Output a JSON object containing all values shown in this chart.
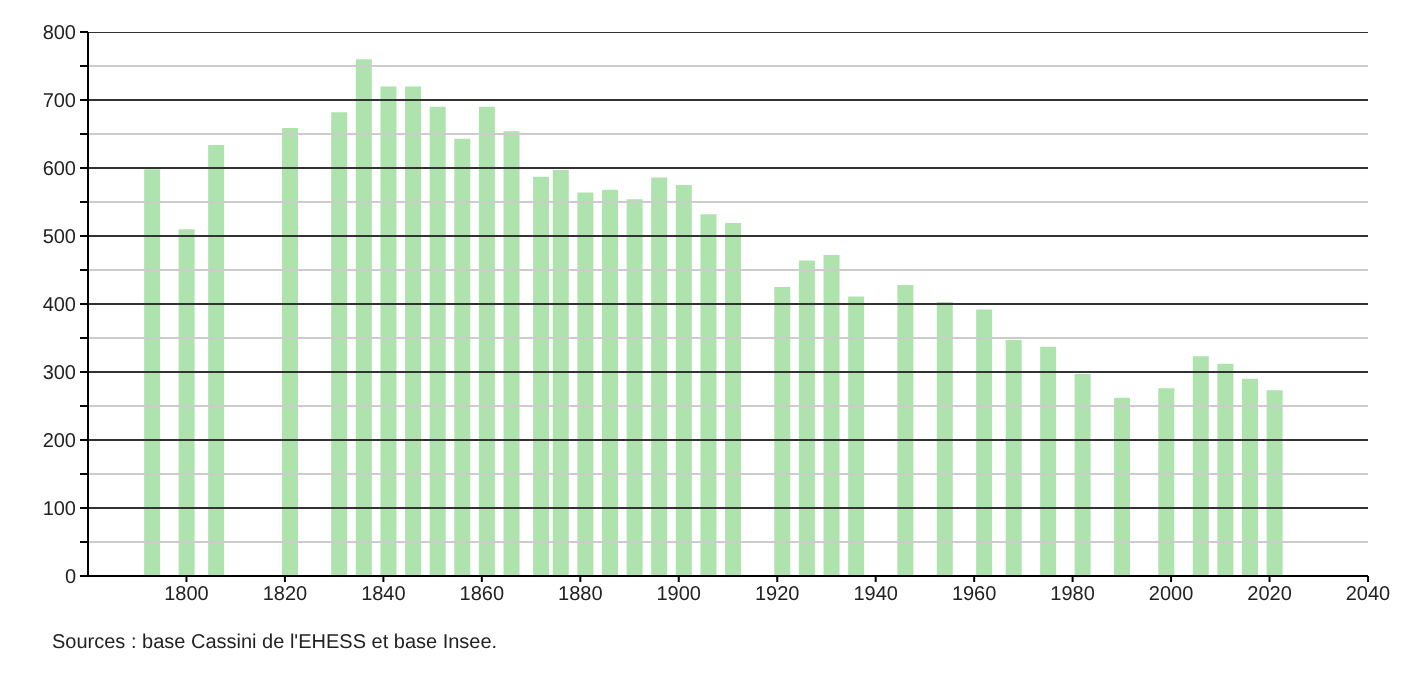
{
  "chart_data": {
    "type": "bar",
    "x": [
      1793,
      1800,
      1806,
      1821,
      1831,
      1836,
      1841,
      1846,
      1851,
      1856,
      1861,
      1866,
      1872,
      1876,
      1881,
      1886,
      1891,
      1896,
      1901,
      1906,
      1911,
      1921,
      1926,
      1931,
      1936,
      1946,
      1954,
      1962,
      1968,
      1975,
      1982,
      1990,
      1999,
      2006,
      2011,
      2016,
      2021
    ],
    "values": [
      598,
      510,
      634,
      659,
      682,
      760,
      720,
      720,
      690,
      643,
      690,
      654,
      587,
      597,
      564,
      568,
      554,
      586,
      575,
      532,
      519,
      425,
      464,
      472,
      411,
      428,
      403,
      392,
      347,
      337,
      297,
      262,
      276,
      323,
      312,
      290,
      273
    ],
    "color": "#aee3ae",
    "xlim": [
      1780,
      2040
    ],
    "xticks": [
      1800,
      1820,
      1840,
      1860,
      1880,
      1900,
      1920,
      1940,
      1960,
      1980,
      2000,
      2020,
      2040
    ],
    "ylim": [
      0,
      800
    ],
    "yticks": [
      0,
      {
        "value": 50,
        "label": null
      },
      100,
      {
        "value": 150,
        "label": null
      },
      200,
      {
        "value": 250,
        "label": null
      },
      300,
      {
        "value": 350,
        "label": null
      },
      400,
      {
        "value": 450,
        "label": null
      },
      500,
      {
        "value": 550,
        "label": null
      },
      600,
      {
        "value": 650,
        "label": null
      },
      700,
      {
        "value": 750,
        "label": null
      },
      800
    ],
    "grid": "y",
    "annotations": [
      "Sources : base Cassini de l'EHESS et base Insee."
    ]
  }
}
